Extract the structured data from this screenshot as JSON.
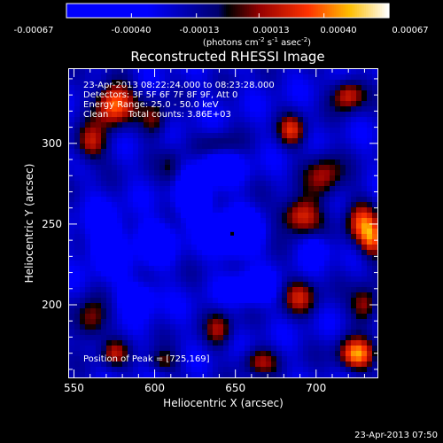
{
  "chart_data": {
    "type": "heatmap",
    "title": "Reconstructed RHESSI Image",
    "xlabel": "Heliocentric X (arcsec)",
    "ylabel": "Heliocentric Y (arcsec)",
    "xlim": [
      547,
      738
    ],
    "ylim": [
      155,
      346
    ],
    "x_ticks": [
      550,
      600,
      650,
      700
    ],
    "y_ticks": [
      200,
      250,
      300
    ],
    "colorbar": {
      "min": -0.00067,
      "max": 0.00067,
      "tick_values": [
        -0.00067,
        -0.0004,
        -0.00013,
        0.00013,
        0.0004,
        0.00067
      ],
      "tick_labels": [
        "-0.00067",
        "-0.00040",
        "-0.00013",
        "0.00013",
        "0.00040",
        "0.00067"
      ],
      "units_label": "(photons cm",
      "units_exp1": "-2",
      "units_mid": " s",
      "units_exp2": "-1",
      "units_mid2": " asec",
      "units_exp3": "-2",
      "units_close": ")"
    },
    "annotations": [
      "23-Apr-2013 08:22:24.000 to 08:23:28.000",
      "Detectors: 3F 5F 6F 7F 8F 9F, Att 0",
      "Energy Range: 25.0 - 50.0 keV",
      "Clean       Total counts: 3.86E+03"
    ],
    "peak_label": "Position of Peak = [725,169]",
    "peak_position": [
      725,
      169
    ],
    "marked_point": [
      648,
      244
    ],
    "hot_regions": [
      {
        "x": 575,
        "y": 325,
        "amp": 0.00067,
        "sx": 8,
        "sy": 10
      },
      {
        "x": 560,
        "y": 300,
        "amp": 0.00045,
        "sx": 7,
        "sy": 8
      },
      {
        "x": 600,
        "y": 315,
        "amp": 0.00035,
        "sx": 6,
        "sy": 8
      },
      {
        "x": 720,
        "y": 330,
        "amp": 0.0005,
        "sx": 7,
        "sy": 7
      },
      {
        "x": 685,
        "y": 308,
        "amp": 0.00045,
        "sx": 6,
        "sy": 7
      },
      {
        "x": 705,
        "y": 280,
        "amp": 0.0004,
        "sx": 8,
        "sy": 10
      },
      {
        "x": 690,
        "y": 255,
        "amp": 0.00055,
        "sx": 9,
        "sy": 8
      },
      {
        "x": 728,
        "y": 250,
        "amp": 0.0005,
        "sx": 7,
        "sy": 10
      },
      {
        "x": 735,
        "y": 240,
        "amp": 0.00045,
        "sx": 5,
        "sy": 8
      },
      {
        "x": 560,
        "y": 190,
        "amp": 0.0004,
        "sx": 7,
        "sy": 9
      },
      {
        "x": 575,
        "y": 170,
        "amp": 0.00035,
        "sx": 6,
        "sy": 6
      },
      {
        "x": 605,
        "y": 165,
        "amp": 0.0003,
        "sx": 7,
        "sy": 5
      },
      {
        "x": 640,
        "y": 185,
        "amp": 0.00035,
        "sx": 6,
        "sy": 8
      },
      {
        "x": 690,
        "y": 205,
        "amp": 0.0004,
        "sx": 8,
        "sy": 8
      },
      {
        "x": 730,
        "y": 200,
        "amp": 0.00045,
        "sx": 6,
        "sy": 8
      },
      {
        "x": 725,
        "y": 169,
        "amp": 0.00067,
        "sx": 8,
        "sy": 7
      },
      {
        "x": 665,
        "y": 165,
        "amp": 0.00035,
        "sx": 8,
        "sy": 6
      },
      {
        "x": 610,
        "y": 285,
        "amp": 0.00022,
        "sx": 5,
        "sy": 8
      },
      {
        "x": 640,
        "y": 300,
        "amp": 0.0002,
        "sx": 8,
        "sy": 5
      }
    ],
    "cold_regions": [
      {
        "x": 650,
        "y": 244,
        "amp": -0.0006,
        "sx": 9,
        "sy": 9
      },
      {
        "x": 625,
        "y": 265,
        "amp": -0.00035,
        "sx": 8,
        "sy": 10
      },
      {
        "x": 600,
        "y": 240,
        "amp": -0.0003,
        "sx": 9,
        "sy": 8
      },
      {
        "x": 640,
        "y": 285,
        "amp": -0.00035,
        "sx": 10,
        "sy": 6
      },
      {
        "x": 570,
        "y": 240,
        "amp": -0.0003,
        "sx": 9,
        "sy": 12
      },
      {
        "x": 660,
        "y": 210,
        "amp": -0.0003,
        "sx": 10,
        "sy": 7
      },
      {
        "x": 590,
        "y": 205,
        "amp": -0.00028,
        "sx": 9,
        "sy": 7
      },
      {
        "x": 700,
        "y": 235,
        "amp": -0.00025,
        "sx": 6,
        "sy": 6
      }
    ]
  },
  "footer": {
    "timestamp": "23-Apr-2013 07:50"
  }
}
